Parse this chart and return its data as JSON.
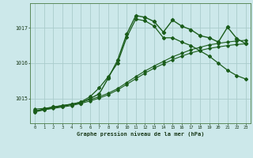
{
  "title": "Graphe pression niveau de la mer (hPa)",
  "background_color": "#cce8ea",
  "grid_color": "#aacccc",
  "line_color": "#1a5c1a",
  "xlim": [
    -0.5,
    23.5
  ],
  "ylim": [
    1014.3,
    1017.7
  ],
  "yticks": [
    1015,
    1016,
    1017
  ],
  "xticks": [
    0,
    1,
    2,
    3,
    4,
    5,
    6,
    7,
    8,
    9,
    10,
    11,
    12,
    13,
    14,
    15,
    16,
    17,
    18,
    19,
    20,
    21,
    22,
    23
  ],
  "line1_x": [
    0,
    1,
    2,
    3,
    4,
    5,
    6,
    7,
    8,
    9,
    10,
    11,
    12,
    13,
    14,
    15,
    16,
    17,
    18,
    19,
    20,
    21,
    22,
    23
  ],
  "line1_y": [
    1014.7,
    1014.72,
    1014.76,
    1014.8,
    1014.84,
    1014.9,
    1014.97,
    1015.05,
    1015.15,
    1015.28,
    1015.45,
    1015.62,
    1015.78,
    1015.92,
    1016.05,
    1016.18,
    1016.28,
    1016.38,
    1016.45,
    1016.52,
    1016.56,
    1016.6,
    1016.63,
    1016.65
  ],
  "line2_x": [
    0,
    1,
    2,
    3,
    4,
    5,
    6,
    7,
    8,
    9,
    10,
    11,
    12,
    13,
    14,
    15,
    16,
    17,
    18,
    19,
    20,
    21,
    22,
    23
  ],
  "line2_y": [
    1014.65,
    1014.68,
    1014.72,
    1014.76,
    1014.8,
    1014.86,
    1014.93,
    1015.01,
    1015.11,
    1015.24,
    1015.4,
    1015.56,
    1015.72,
    1015.86,
    1015.98,
    1016.1,
    1016.2,
    1016.29,
    1016.36,
    1016.42,
    1016.46,
    1016.5,
    1016.53,
    1016.55
  ],
  "line3_x": [
    0,
    1,
    2,
    3,
    4,
    5,
    6,
    7,
    8,
    9,
    10,
    11,
    12,
    13,
    14,
    15,
    16,
    17,
    18,
    19,
    20,
    21,
    22,
    23
  ],
  "line3_y": [
    1014.65,
    1014.7,
    1014.76,
    1014.8,
    1014.84,
    1014.87,
    1015.0,
    1015.13,
    1015.58,
    1016.08,
    1016.82,
    1017.35,
    1017.3,
    1017.18,
    1016.88,
    1017.22,
    1017.05,
    1016.95,
    1016.78,
    1016.72,
    1016.6,
    1017.02,
    1016.7,
    1016.55
  ],
  "line4_x": [
    0,
    1,
    2,
    3,
    4,
    5,
    6,
    7,
    8,
    9,
    10,
    11,
    12,
    13,
    14,
    15,
    16,
    17,
    18,
    19,
    20,
    21,
    22,
    23
  ],
  "line4_y": [
    1014.62,
    1014.68,
    1014.74,
    1014.78,
    1014.83,
    1014.9,
    1015.05,
    1015.3,
    1015.62,
    1016.0,
    1016.73,
    1017.25,
    1017.2,
    1017.05,
    1016.72,
    1016.72,
    1016.6,
    1016.5,
    1016.35,
    1016.2,
    1016.0,
    1015.8,
    1015.65,
    1015.55
  ]
}
